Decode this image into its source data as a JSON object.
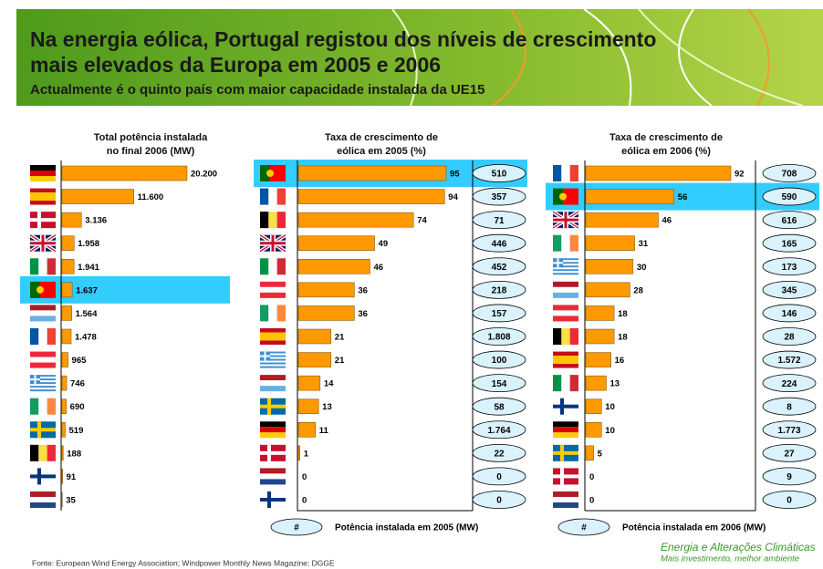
{
  "header": {
    "title_lines": [
      "Na energia eólica, Portugal registou dos níveis de crescimento",
      "mais elevados da Europa em 2005 e 2006"
    ],
    "subtitle": "Actualmente é o quinto país com maior capacidade instalada da UE15"
  },
  "chart_data": [
    {
      "type": "bar",
      "orientation": "horizontal",
      "title_lines": [
        "Total potência instalada",
        "no final 2006  (MW)"
      ],
      "color": "#ff9900",
      "highlight": 5,
      "values": [
        20200,
        11600,
        3136,
        1958,
        1941,
        1637,
        1564,
        1478,
        965,
        746,
        690,
        519,
        188,
        91,
        35
      ],
      "value_labels": [
        "20.200",
        "11.600",
        "3.136",
        "1.958",
        "1.941",
        "1.637",
        "1.564",
        "1.478",
        "965",
        "746",
        "690",
        "519",
        "188",
        "91",
        "35"
      ]
    },
    {
      "type": "bar",
      "orientation": "horizontal",
      "title_lines": [
        "Taxa de crescimento de",
        "eólica em 2005 (%)"
      ],
      "color": "#ff9900",
      "highlight": 0,
      "values": [
        95,
        94,
        74,
        49,
        46,
        36,
        36,
        21,
        21,
        14,
        13,
        11,
        1,
        0,
        0
      ],
      "installed": {
        "name": "Potência instalada em 2005 (MW)",
        "legend_symbol": "#",
        "values": [
          510,
          357,
          71,
          446,
          452,
          218,
          157,
          1808,
          100,
          154,
          58,
          1764,
          22,
          0,
          0
        ],
        "value_labels": [
          "510",
          "357",
          "71",
          "446",
          "452",
          "218",
          "157",
          "1.808",
          "100",
          "154",
          "58",
          "1.764",
          "22",
          "0",
          "0"
        ]
      }
    },
    {
      "type": "bar",
      "orientation": "horizontal",
      "title_lines": [
        "Taxa de crescimento de",
        "eólica em 2006 (%)"
      ],
      "color": "#ff9900",
      "highlight": 1,
      "values": [
        92,
        56,
        46,
        31,
        30,
        28,
        18,
        18,
        16,
        13,
        10,
        10,
        5,
        0,
        0
      ],
      "installed": {
        "name": "Potência instalada em 2006 (MW)",
        "legend_symbol": "#",
        "values": [
          708,
          590,
          616,
          165,
          173,
          345,
          146,
          28,
          1572,
          224,
          8,
          1773,
          27,
          9,
          0
        ],
        "value_labels": [
          "708",
          "590",
          "616",
          "165",
          "173",
          "345",
          "146",
          "28",
          "1.572",
          "224",
          "8",
          "1.773",
          "27",
          "9",
          "0"
        ]
      }
    }
  ],
  "footer": {
    "source": "Fonte: European Wind Energy Association; Windpower Monthly News Magazine; DGGE",
    "brand_lines": [
      "Energia e Alterações Climáticas",
      "Mais investimento, melhor ambiente"
    ]
  }
}
